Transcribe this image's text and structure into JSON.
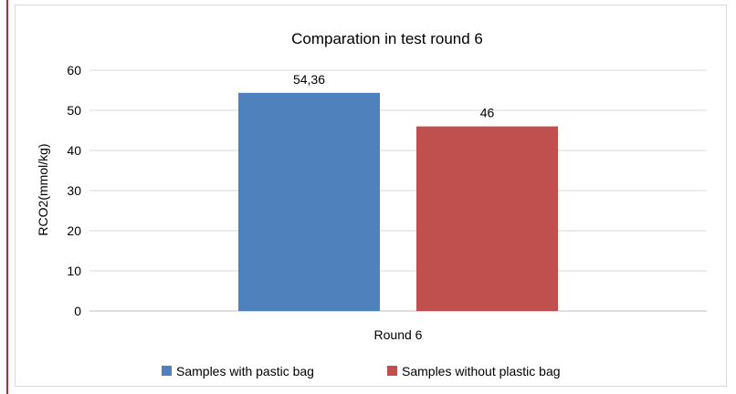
{
  "chart_data": {
    "type": "bar",
    "title": "Comparation in test round 6",
    "xlabel": "",
    "ylabel": "RCO2(mmol/kg)",
    "categories": [
      "Round 6"
    ],
    "ylim": [
      0,
      60
    ],
    "yticks": [
      "0",
      "10",
      "20",
      "30",
      "40",
      "50",
      "60"
    ],
    "grid": true,
    "legend_position": "bottom",
    "series": [
      {
        "name": "Samples with pastic bag",
        "values": [
          54.36
        ],
        "label": "54,36",
        "color": "#4f81bd"
      },
      {
        "name": "Samples without plastic bag",
        "values": [
          46
        ],
        "label": "46",
        "color": "#c0504d"
      }
    ]
  }
}
